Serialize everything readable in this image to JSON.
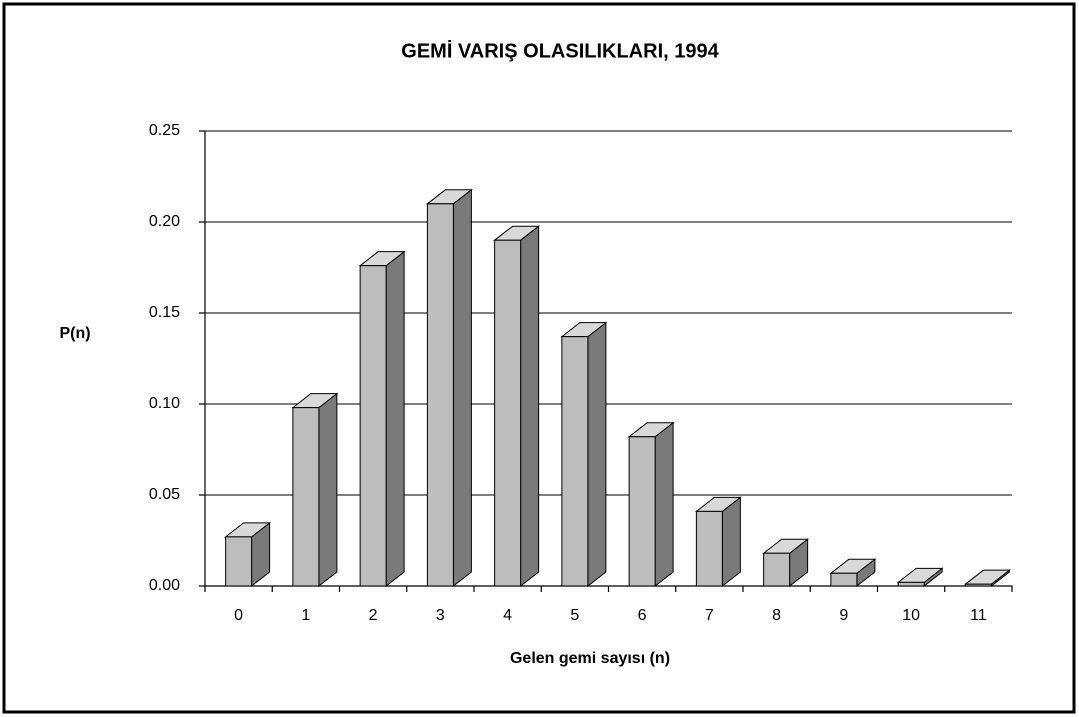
{
  "chart_data": {
    "type": "bar",
    "title": "GEMİ VARIŞ OLASILIKLARI, 1994",
    "x_label": "Gelen gemi sayısı (n)",
    "y_label": "P(n)",
    "categories": [
      "0",
      "1",
      "2",
      "3",
      "4",
      "5",
      "6",
      "7",
      "8",
      "9",
      "10",
      "11"
    ],
    "values": [
      0.027,
      0.098,
      0.176,
      0.21,
      0.19,
      0.137,
      0.082,
      0.041,
      0.018,
      0.007,
      0.002,
      0.001
    ],
    "color": "#bdbdbd",
    "ylim": [
      0,
      0.25
    ],
    "yticks": [
      {
        "value": 0,
        "label": "0.00"
      },
      {
        "value": 0.05,
        "label": "0.05"
      },
      {
        "value": 0.1,
        "label": "0.10"
      },
      {
        "value": 0.15,
        "label": "0.15"
      },
      {
        "value": 0.2,
        "label": "0.20"
      },
      {
        "value": 0.25,
        "label": "0.25"
      }
    ],
    "grid": true
  }
}
